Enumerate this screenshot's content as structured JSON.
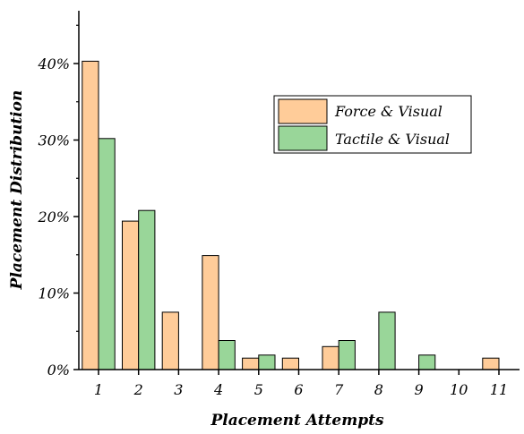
{
  "chart_data": {
    "type": "bar",
    "xlabel": "Placement Attempts",
    "ylabel": "Placement Distribution",
    "categories": [
      "1",
      "2",
      "3",
      "4",
      "5",
      "6",
      "7",
      "8",
      "9",
      "10",
      "11"
    ],
    "series": [
      {
        "name": "Force & Visual",
        "color": "#FFCC99",
        "values": [
          40.3,
          19.4,
          7.5,
          14.9,
          1.5,
          1.5,
          3.0,
          0,
          0,
          0,
          1.5
        ]
      },
      {
        "name": "Tactile & Visual",
        "color": "#99D699",
        "values": [
          30.2,
          20.8,
          0,
          3.8,
          1.9,
          0,
          3.8,
          7.5,
          1.9,
          0,
          0
        ]
      }
    ],
    "ylim": [
      0,
      46.9
    ],
    "yticks": [
      0,
      10,
      20,
      30,
      40
    ],
    "ytick_labels": [
      "0%",
      "10%",
      "20%",
      "30%",
      "40%"
    ],
    "grid": false,
    "legend_position": "top-right"
  }
}
